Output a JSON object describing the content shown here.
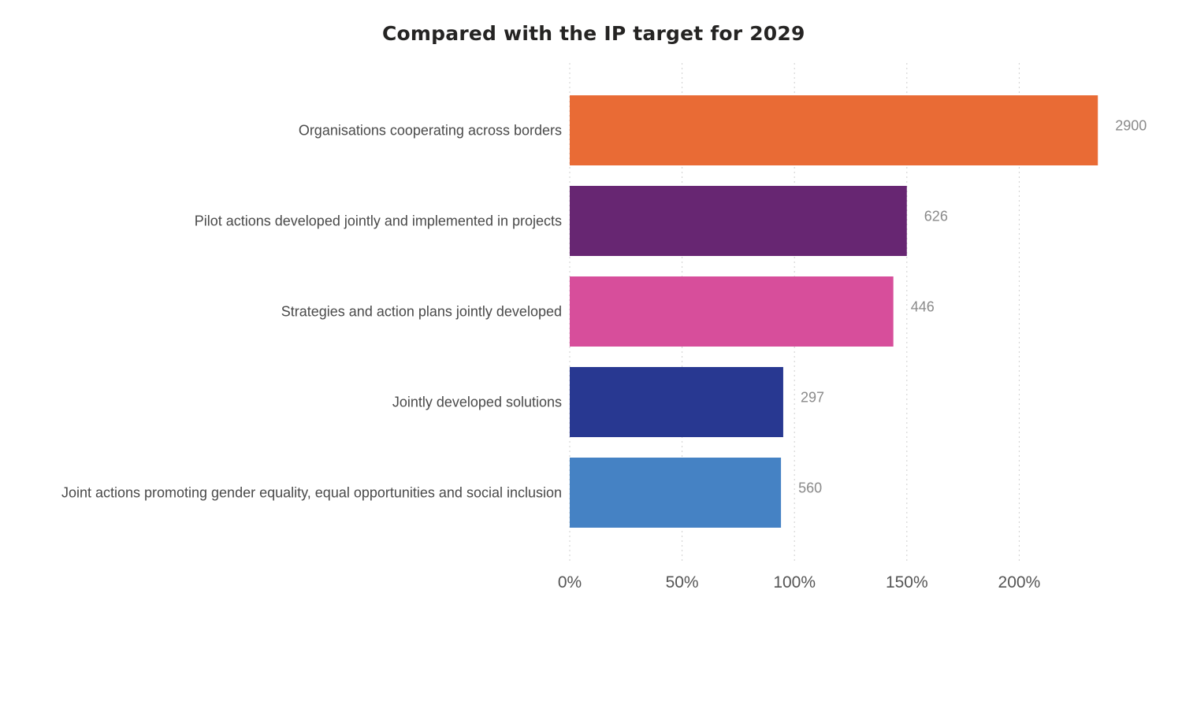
{
  "chart_data": {
    "type": "bar",
    "orientation": "horizontal",
    "title": "Compared with the IP target for 2029",
    "xlabel": "",
    "ylabel": "",
    "xlim": [
      0,
      250
    ],
    "x_ticks": [
      0,
      50,
      100,
      150,
      200
    ],
    "x_tick_labels": [
      "0%",
      "50%",
      "100%",
      "150%",
      "200%"
    ],
    "grid": true,
    "legend": "none",
    "categories": [
      "Organisations cooperating across borders",
      "Pilot actions developed jointly and implemented in projects",
      "Strategies and action plans jointly developed",
      "Jointly developed solutions",
      "Joint actions promoting gender equality, equal opportunities and social inclusion"
    ],
    "values_percent": [
      235,
      150,
      144,
      95,
      94
    ],
    "data_labels": [
      "2900",
      "626",
      "446",
      "297",
      "560"
    ],
    "colors": [
      "#E96B35",
      "#672672",
      "#D74E9B",
      "#283891",
      "#4582C4"
    ]
  }
}
